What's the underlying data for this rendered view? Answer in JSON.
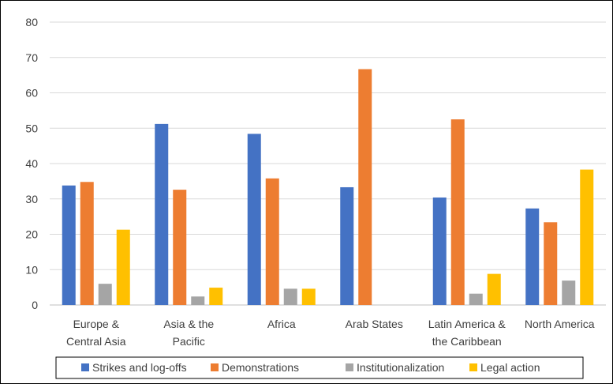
{
  "chart_data": {
    "type": "bar",
    "categories": [
      [
        "Europe &",
        "Central Asia"
      ],
      [
        "Asia & the",
        "Pacific"
      ],
      [
        "Africa"
      ],
      [
        "Arab States"
      ],
      [
        "Latin America &",
        "the Caribbean"
      ],
      [
        "North America"
      ]
    ],
    "series": [
      {
        "name": "Strikes and log-offs",
        "color": "#4472c4",
        "values": [
          33.8,
          51.2,
          48.4,
          33.3,
          30.4,
          27.3
        ]
      },
      {
        "name": "Demonstrations",
        "color": "#ed7d31",
        "values": [
          34.8,
          32.6,
          35.8,
          66.7,
          52.5,
          23.4
        ]
      },
      {
        "name": "Institutionalization",
        "color": "#a5a5a5",
        "values": [
          6.0,
          2.4,
          4.6,
          0,
          3.2,
          6.9
        ]
      },
      {
        "name": "Legal action",
        "color": "#ffc000",
        "values": [
          21.3,
          4.9,
          4.6,
          0,
          8.8,
          38.3
        ]
      }
    ],
    "ylim": [
      0,
      80
    ],
    "yticks": [
      0,
      10,
      20,
      30,
      40,
      50,
      60,
      70,
      80
    ],
    "grid": true,
    "legend_position": "bottom",
    "title": "",
    "xlabel": "",
    "ylabel": ""
  }
}
